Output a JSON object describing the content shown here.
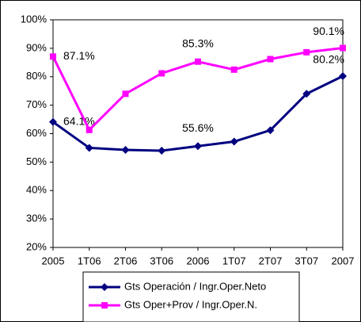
{
  "chart_data": {
    "type": "line",
    "categories": [
      "2005",
      "1T06",
      "2T06",
      "3T06",
      "2006",
      "1T07",
      "2T07",
      "3T07",
      "2007"
    ],
    "series": [
      {
        "name": "Gts Operación / Ingr.Oper.Neto",
        "color": "#000080",
        "marker": "diamond",
        "values": [
          64.1,
          55.0,
          54.3,
          54.0,
          55.6,
          57.2,
          61.2,
          74.0,
          80.2
        ],
        "value_labels": [
          "64.1%",
          null,
          null,
          null,
          "55.6%",
          null,
          null,
          null,
          "80.2%"
        ]
      },
      {
        "name": "Gts Oper+Prov / Ingr.Oper.N.",
        "color": "#ff00ff",
        "marker": "square",
        "values": [
          87.1,
          61.3,
          74.0,
          81.2,
          85.3,
          82.5,
          86.2,
          88.6,
          90.1
        ],
        "value_labels": [
          "87.1%",
          null,
          null,
          null,
          "85.3%",
          null,
          null,
          null,
          "90.1%"
        ]
      }
    ],
    "ylim": [
      20,
      100
    ],
    "yticks": [
      {
        "value": 20,
        "label": "20%"
      },
      {
        "value": 30,
        "label": "30%"
      },
      {
        "value": 40,
        "label": "40%"
      },
      {
        "value": 50,
        "label": "50%"
      },
      {
        "value": 60,
        "label": "60%"
      },
      {
        "value": 70,
        "label": "70%"
      },
      {
        "value": 80,
        "label": "80%"
      },
      {
        "value": 90,
        "label": "90%"
      },
      {
        "value": 100,
        "label": "100%"
      }
    ],
    "grid": false,
    "legend": "bottom"
  }
}
